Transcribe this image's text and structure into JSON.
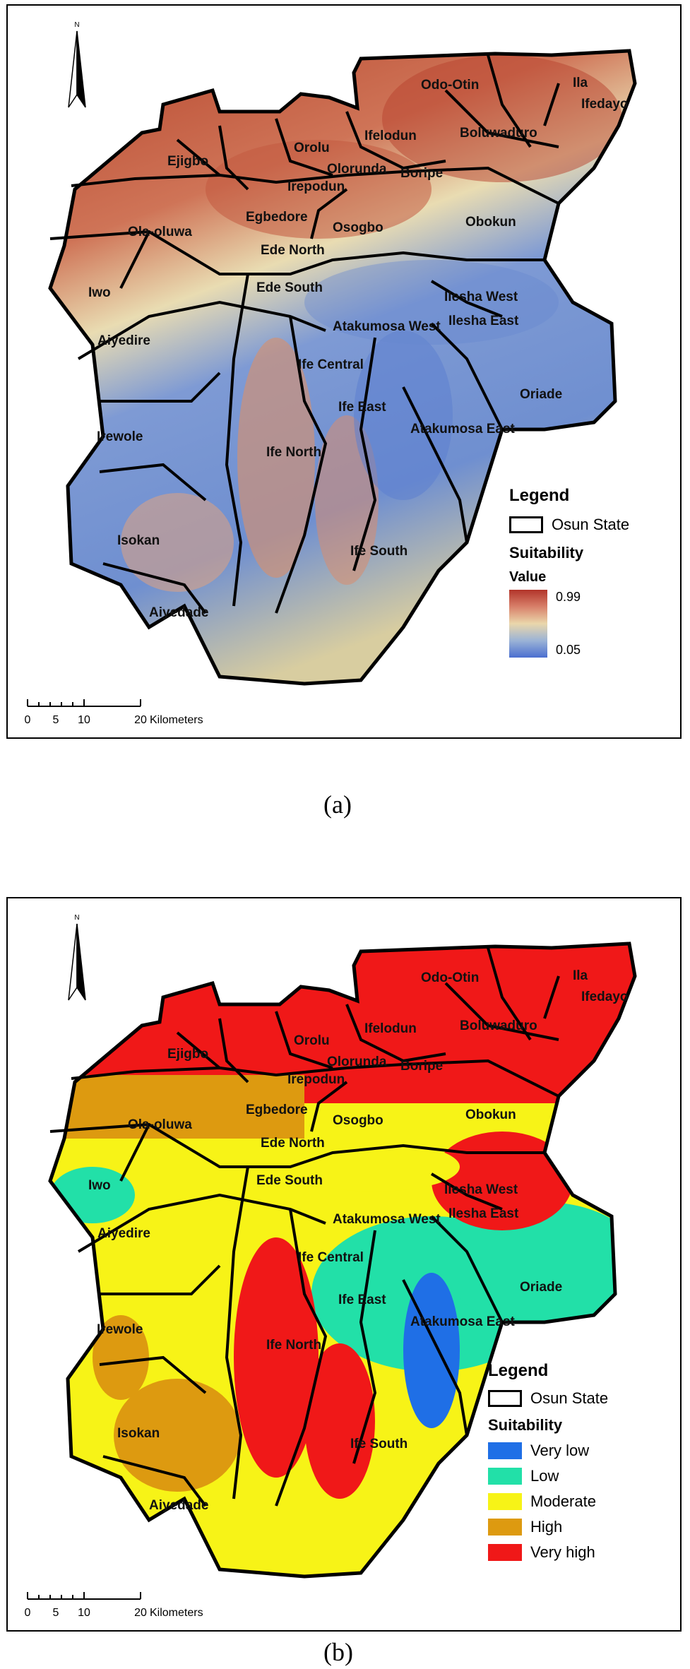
{
  "district_names": {
    "odo_otin": "Odo-Otin",
    "ila": "Ila",
    "boluwaduro": "Boluwaduro",
    "ifedayo": "Ifedayo",
    "ifelodun": "Ifelodun",
    "orolu": "Orolu",
    "olorunda": "Olorunda",
    "irepodun": "Irepodun",
    "boripe": "Boripe",
    "ejigbo": "Ejigbo",
    "egbedore": "Egbedore",
    "osogbo": "Osogbo",
    "obokun": "Obokun",
    "ola_oluwa": "Ola-oluwa",
    "ede_north": "Ede North",
    "ede_south": "Ede South",
    "iwo": "Iwo",
    "ilesha_west": "Ilesha West",
    "ilesha_east": "Ilesha East",
    "atakumosa_west": "Atakumosa West",
    "aiyedire": "Aiyedire",
    "ife_central": "Ife Central",
    "ife_east": "Ife East",
    "oriade": "Oriade",
    "atakumosa_east": "Atakumosa East",
    "irewole": "Irewole",
    "ife_north": "Ife North",
    "isokan": "Isokan",
    "ife_south": "Ife South",
    "aiyedade": "Aiyedade"
  },
  "north_label": "N",
  "scale_bar": {
    "ticks": [
      "0",
      "5",
      "10",
      "20"
    ],
    "unit": "Kilometers"
  },
  "panel_a": {
    "caption": "(a)",
    "legend": {
      "title": "Legend",
      "boundary_label": "Osun State",
      "field_title": "Suitability",
      "field_subtitle": "Value",
      "max_label": "0.99",
      "min_label": "0.05",
      "ramp_colors": [
        "#b2342a",
        "#d8806a",
        "#ead7ab",
        "#9bb3d6",
        "#4a6ed0"
      ]
    }
  },
  "panel_b": {
    "caption": "(b)",
    "legend": {
      "title": "Legend",
      "boundary_label": "Osun State",
      "field_title": "Suitability",
      "classes": [
        {
          "label": "Very low",
          "color": "#1f6fe6"
        },
        {
          "label": "Low",
          "color": "#22e0a8"
        },
        {
          "label": "Moderate",
          "color": "#f7f317"
        },
        {
          "label": "High",
          "color": "#dd9a10"
        },
        {
          "label": "Very high",
          "color": "#f01818"
        }
      ]
    }
  }
}
